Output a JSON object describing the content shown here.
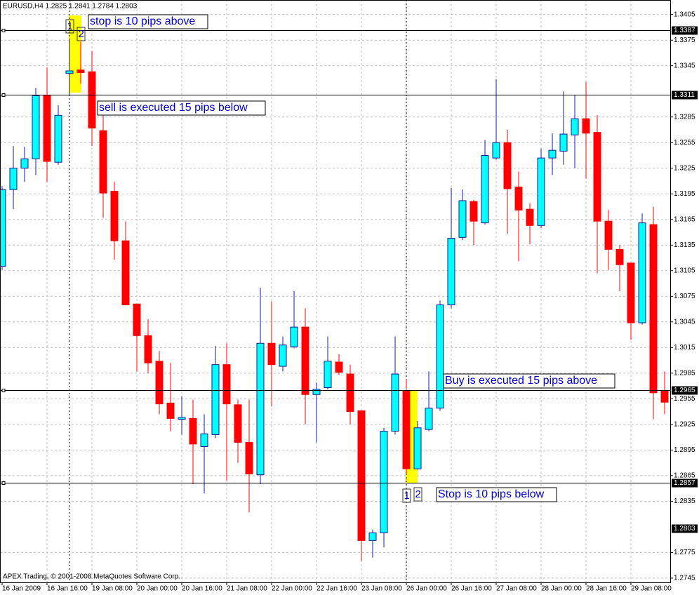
{
  "chart_data": {
    "type": "candlestick",
    "title": "EURUSD,H4  1.2825 1.2841 1.2784 1.2803",
    "footer": "APEX Trading, © 2001-2008 MetaQuotes Software Corp.",
    "categories": [
      "16 Jan 2009",
      null,
      null,
      null,
      "16 Jan 16:00",
      null,
      null,
      null,
      "19 Jan 08:00",
      null,
      null,
      null,
      "20 Jan 00:00",
      null,
      null,
      null,
      "20 Jan 16:00",
      null,
      null,
      null,
      "21 Jan 08:00",
      null,
      null,
      null,
      "22 Jan 00:00",
      null,
      null,
      null,
      "22 Jan 16:00",
      null,
      null,
      null,
      "23 Jan 08:00",
      null,
      null,
      null,
      "26 Jan 00:00",
      null,
      null,
      null,
      "26 Jan 16:00",
      null,
      null,
      null,
      "27 Jan 08:00",
      null,
      null,
      null,
      "28 Jan 00:00",
      null,
      null,
      null,
      "28 Jan 16:00",
      null,
      null,
      null,
      "29 Jan 08:00",
      null,
      null,
      null
    ],
    "open": [
      1.311,
      1.32,
      1.3225,
      1.3236,
      1.331,
      1.3232,
      1.3336,
      1.334,
      1.3338,
      1.3269,
      1.3198,
      1.314,
      1.3066,
      1.3029,
      1.2999,
      1.295,
      1.2931,
      1.2932,
      1.2899,
      1.2913,
      1.2995,
      1.2948,
      1.2904,
      1.2866,
      1.302,
      1.2993,
      1.3016,
      1.3039,
      1.296,
      1.2968,
      1.2998,
      1.2984,
      1.2941,
      1.2789,
      1.2798,
      1.2917,
      1.2964,
      1.2873,
      1.2919,
      1.2944,
      1.3065,
      1.3144,
      1.3186,
      1.3161,
      1.3237,
      1.3255,
      1.3203,
      1.3177,
      1.3158,
      1.3237,
      1.3245,
      1.3264,
      1.3283,
      1.3267,
      1.3163,
      1.313,
      1.3114,
      1.3044,
      1.3159,
      1.2964
    ],
    "high": [
      1.3204,
      1.3251,
      1.325,
      1.3319,
      1.3343,
      1.3299,
      1.3377,
      1.3373,
      1.3362,
      1.3287,
      1.3209,
      1.3163,
      1.3066,
      1.3048,
      1.3011,
      1.2997,
      1.2958,
      1.2954,
      1.2937,
      1.3017,
      1.302,
      1.2954,
      1.2954,
      1.3085,
      1.3069,
      1.3028,
      1.3081,
      1.3061,
      1.2974,
      1.3028,
      1.3007,
      1.2995,
      1.2941,
      1.2802,
      1.2921,
      1.3028,
      1.2978,
      1.2929,
      1.2987,
      1.307,
      1.3202,
      1.32,
      1.3188,
      1.3258,
      1.3329,
      1.327,
      1.3221,
      1.3184,
      1.3248,
      1.3266,
      1.3315,
      1.3311,
      1.3326,
      1.3287,
      1.3176,
      1.3135,
      1.3114,
      1.3172,
      1.318,
      1.2987
    ],
    "low": [
      1.3106,
      1.3177,
      1.3209,
      1.3217,
      1.3209,
      1.3229,
      1.3311,
      1.3324,
      1.3251,
      1.3167,
      1.3118,
      1.3065,
      1.2987,
      1.2985,
      1.2937,
      1.2917,
      1.2913,
      1.2855,
      1.2844,
      1.2909,
      1.2859,
      1.288,
      1.2822,
      1.2855,
      1.2946,
      1.2987,
      1.3014,
      1.2925,
      1.2904,
      1.2966,
      1.2983,
      1.2925,
      1.2765,
      1.2769,
      1.2781,
      1.2913,
      1.2867,
      1.2872,
      1.2917,
      1.2941,
      1.3061,
      1.3141,
      1.3135,
      1.3159,
      1.3235,
      1.3148,
      1.3116,
      1.3136,
      1.3155,
      1.3217,
      1.3229,
      1.3225,
      1.3213,
      1.3102,
      1.3106,
      1.3081,
      1.3024,
      1.3042,
      1.2931,
      1.2937
    ],
    "close": [
      1.32,
      1.3225,
      1.3236,
      1.331,
      1.3233,
      1.3287,
      1.3339,
      1.3337,
      1.3272,
      1.3196,
      1.314,
      1.3065,
      1.3029,
      1.2997,
      1.2949,
      1.2932,
      1.2933,
      1.2902,
      1.2914,
      1.2995,
      1.2949,
      1.2904,
      1.2867,
      1.302,
      1.2995,
      1.3018,
      1.3039,
      1.296,
      1.2966,
      1.2999,
      1.2986,
      1.294,
      1.2789,
      1.2798,
      1.2917,
      1.2984,
      1.2873,
      1.2921,
      1.2944,
      1.3065,
      1.3143,
      1.3187,
      1.3163,
      1.324,
      1.3255,
      1.3201,
      1.3176,
      1.3158,
      1.3237,
      1.3246,
      1.3265,
      1.3283,
      1.3266,
      1.3163,
      1.313,
      1.3112,
      1.3044,
      1.3161,
      1.2962,
      1.2951
    ],
    "up_color": "#00ffff",
    "up_line_color": "#1a1aa0",
    "down_color": "#ff0000",
    "ylim": [
      1.274,
      1.3422
    ],
    "yticks": [
      1.3405,
      1.3375,
      1.3345,
      1.3285,
      1.3255,
      1.3225,
      1.3195,
      1.3165,
      1.3135,
      1.3105,
      1.3075,
      1.3045,
      1.3015,
      1.2985,
      1.2955,
      1.2925,
      1.2895,
      1.2865,
      1.2835,
      1.2775,
      1.2745
    ],
    "grid": true,
    "hlines": [
      1.3387,
      1.3311,
      1.2965,
      1.2857
    ],
    "bid": 1.2803,
    "annotations": [
      "stop is 10 pips above",
      "sell is executed 15 pips below",
      "Buy is executed 15 pips above",
      "Stop is 10 pips below"
    ],
    "markers": [
      "1",
      "2",
      "1",
      "2"
    ]
  }
}
